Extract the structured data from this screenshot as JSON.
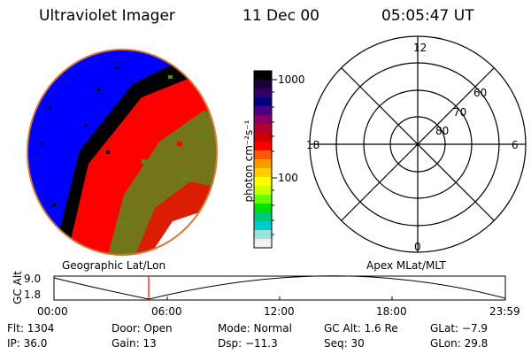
{
  "header": {
    "instrument": "Ultraviolet Imager",
    "date": "11 Dec 00",
    "time": "05:05:47 UT"
  },
  "colorbar": {
    "unit_label": "photon cm⁻²s⁻¹",
    "ticks": [
      "1000",
      "100"
    ],
    "colors": [
      "#000000",
      "#1a0033",
      "#330066",
      "#000080",
      "#4b0082",
      "#8b0066",
      "#b00030",
      "#cc0000",
      "#ff0000",
      "#ff5a00",
      "#ff9900",
      "#ffcc00",
      "#ffff00",
      "#ccff00",
      "#66ff00",
      "#00e000",
      "#00c878",
      "#00cccc",
      "#a0e0e0",
      "#f0f0f0"
    ]
  },
  "polar": {
    "labels_mlt": [
      "12",
      "18",
      "6",
      "0"
    ],
    "labels_lat": [
      "60",
      "70",
      "80"
    ]
  },
  "map_labels": {
    "left": "Geographic Lat/Lon",
    "right": "Apex MLat/MLT"
  },
  "altitude_plot": {
    "ylabel": "GC Alt",
    "ytick_top": "9.0",
    "ytick_bottom": "1.8",
    "xticks": [
      "00:00",
      "06:00",
      "12:00",
      "18:00",
      "23:59"
    ],
    "marker_color": "#ff0000"
  },
  "footer": {
    "flt": "Flt: 1304",
    "ip": "IP: 36.0",
    "door": "Door: Open",
    "gain": "Gain: 13",
    "mode": "Mode: Normal",
    "dsp": "Dsp:  −11.3",
    "gcalt": "GC Alt: 1.6 Re",
    "seq": "Seq: 30",
    "glat": "GLat:  −7.9",
    "glon": "GLon:  29.8"
  },
  "image_colors": {
    "blue": "#0000ff",
    "red": "#ff0000",
    "green": "#5a8a1e",
    "black": "#000000",
    "orange_rim": "#d07a3a"
  }
}
